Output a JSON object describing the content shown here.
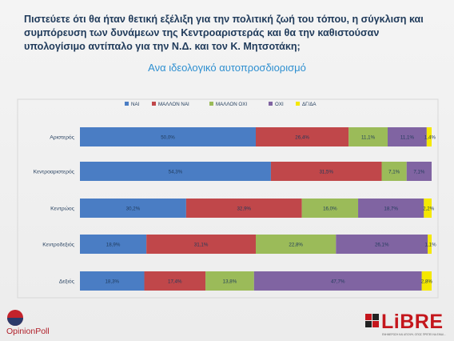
{
  "title": "Πιστεύετε ότι θα ήταν θετική εξέλιξη για την πολιτική ζωή του τόπου, η σύγκλιση και συμπόρευση των δυνάμεων της Κεντροαριστεράς και θα την καθιστούσαν υπολογίσιμο αντίπαλο για την Ν.Δ. και τον Κ. Μητσοτάκη;",
  "subtitle": "Ανα ιδεολογικό αυτοπροσδιορισμό",
  "logos": {
    "opinionpoll": "OpinionPoll",
    "libre": "LiBRE",
    "libre_tagline": "ΕΝΗΜΕΡΩΣΗ ΚΑΙ ΑΠΟΨΗ, ΟΠΩΣ ΠΡΕΠΕΙ ΝΑ ΕΙΝΑΙ..."
  },
  "chart_data": {
    "type": "bar",
    "orientation": "horizontal",
    "stacked": true,
    "categories": [
      "Αριστερός",
      "Κεντροαριστερός",
      "Κεντρώος",
      "Κεντροδεξιός",
      "Δεξιός"
    ],
    "series": [
      {
        "name": "ΝΑΙ",
        "color": "#4a7dc4",
        "values": [
          50.0,
          54.3,
          30.2,
          18.9,
          18.3
        ],
        "labels": [
          "50,0%",
          "54,3%",
          "30,2%",
          "18,9%",
          "18,3%"
        ]
      },
      {
        "name": "ΜΑΛΛΟΝ ΝΑΙ",
        "color": "#c0474a",
        "values": [
          26.4,
          31.5,
          32.9,
          31.1,
          17.4
        ],
        "labels": [
          "26,4%",
          "31,5%",
          "32,9%",
          "31,1%",
          "17,4%"
        ]
      },
      {
        "name": "ΜΑΛΛΟΝ ΟΧΙ",
        "color": "#9bbb59",
        "values": [
          11.1,
          7.1,
          16.0,
          22.8,
          13.8
        ],
        "labels": [
          "11,1%",
          "7,1%",
          "16,0%",
          "22,8%",
          "13,8%"
        ]
      },
      {
        "name": "ΟΧΙ",
        "color": "#8064a2",
        "values": [
          11.1,
          7.1,
          18.7,
          26.1,
          47.7
        ],
        "labels": [
          "11,1%",
          "7,1%",
          "18,7%",
          "26,1%",
          "47,7%"
        ]
      },
      {
        "name": "ΔΓ/ΔΑ",
        "color": "#f5e800",
        "values": [
          1.4,
          0,
          2.2,
          1.1,
          2.8
        ],
        "labels": [
          "1,4%",
          "",
          "2,2%",
          "1,1%",
          "2,8%"
        ]
      }
    ],
    "legend_position": "top",
    "xlim": [
      0,
      100
    ],
    "grid": false
  }
}
